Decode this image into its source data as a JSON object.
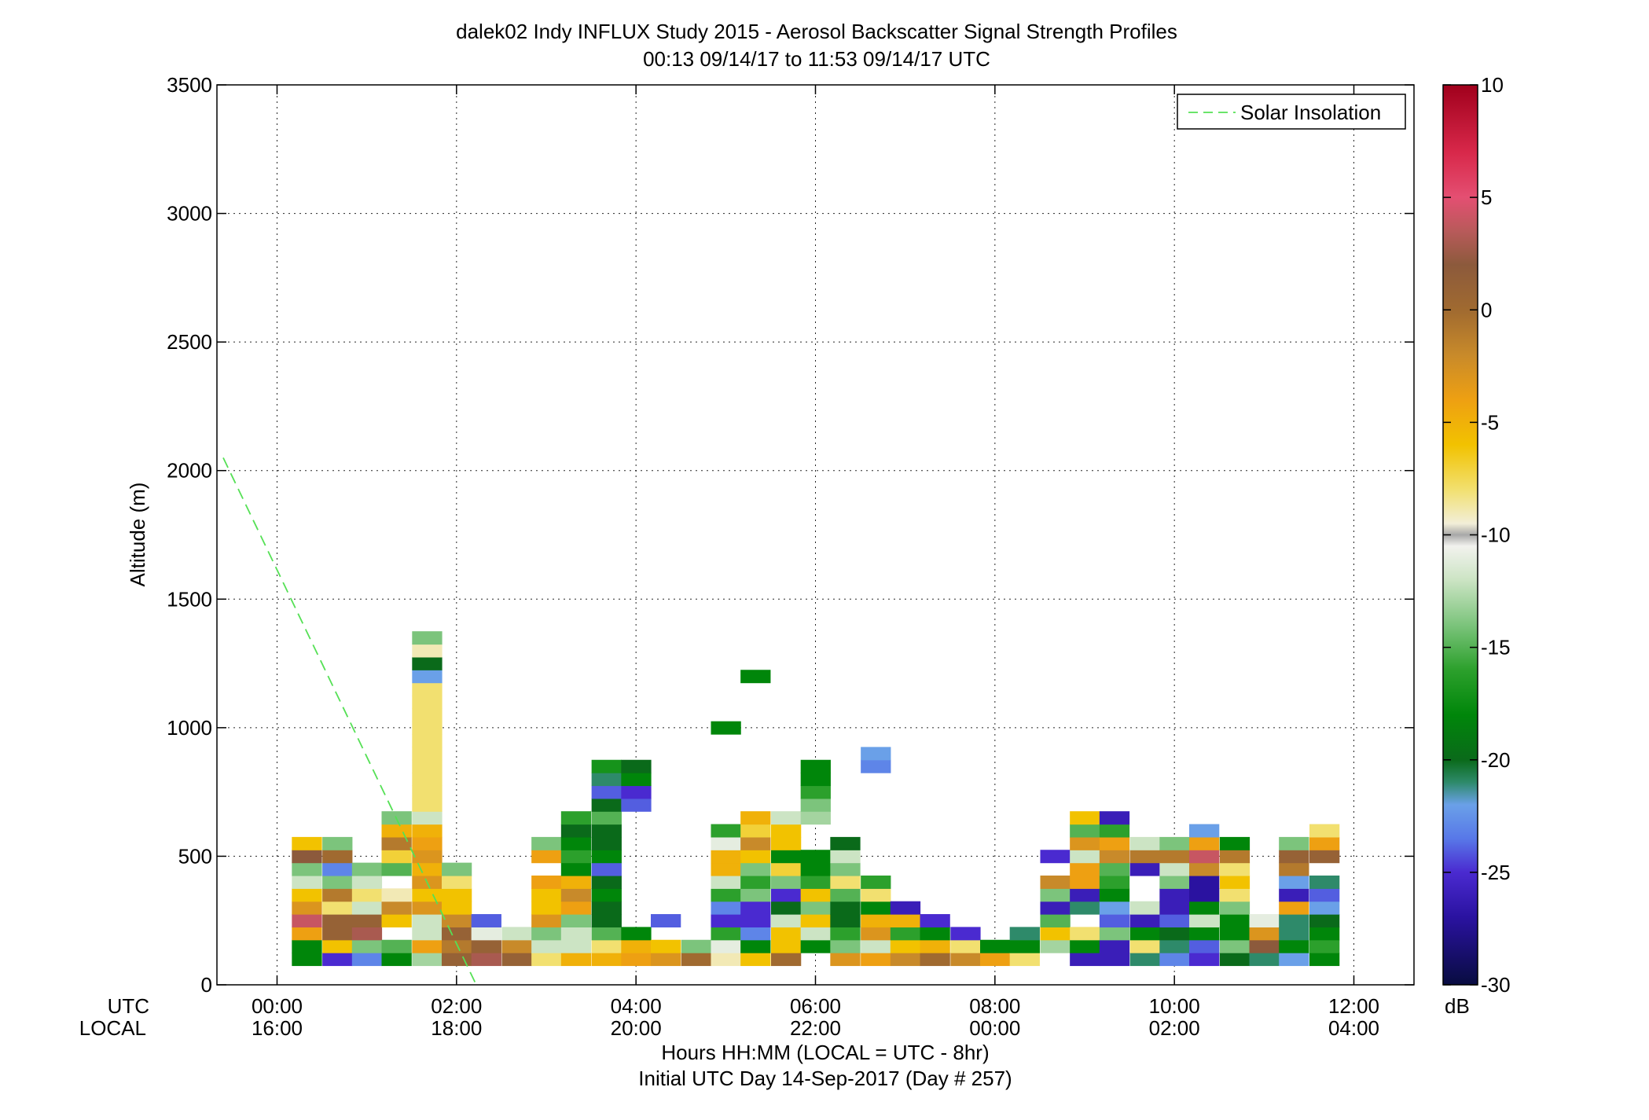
{
  "chart_data": {
    "type": "heatmap",
    "title": "dalek02 Indy INFLUX Study 2015 - Aerosol Backscatter Signal Strength Profiles",
    "subtitle": "00:13 09/14/17 to 11:53 09/14/17  UTC",
    "ylabel": "Altitude (m)",
    "xlabel_lines": [
      "Hours HH:MM  (LOCAL = UTC - 8hr)",
      "Initial UTC Day 14-Sep-2017 (Day # 257)"
    ],
    "x_row_labels": [
      "UTC",
      "LOCAL"
    ],
    "xlim_hours": [
      -0.67,
      12.67
    ],
    "ylim": [
      0,
      3500
    ],
    "x_ticks": [
      {
        "hour": 0,
        "utc": "00:00",
        "local": "16:00"
      },
      {
        "hour": 2,
        "utc": "02:00",
        "local": "18:00"
      },
      {
        "hour": 4,
        "utc": "04:00",
        "local": "20:00"
      },
      {
        "hour": 6,
        "utc": "06:00",
        "local": "22:00"
      },
      {
        "hour": 8,
        "utc": "08:00",
        "local": "00:00"
      },
      {
        "hour": 10,
        "utc": "10:00",
        "local": "02:00"
      },
      {
        "hour": 12,
        "utc": "12:00",
        "local": "04:00"
      }
    ],
    "y_ticks": [
      0,
      500,
      1000,
      1500,
      2000,
      2500,
      3000,
      3500
    ],
    "grid": true,
    "legend_position": "top-right",
    "legend": [
      {
        "name": "Solar Insolation",
        "color": "#55e055",
        "style": "dashed"
      }
    ],
    "solar_insolation": {
      "x_hours": [
        -0.6,
        2.22
      ],
      "y": [
        2050,
        0
      ]
    },
    "colorbar": {
      "label": "dB",
      "range": [
        -30,
        10
      ],
      "ticks": [
        10,
        5,
        0,
        -5,
        -10,
        -15,
        -20,
        -25,
        -30
      ],
      "stops": [
        {
          "v": 10,
          "c": "#a0001c"
        },
        {
          "v": 7,
          "c": "#d8284a"
        },
        {
          "v": 5,
          "c": "#e44f72"
        },
        {
          "v": 3.5,
          "c": "#b85a5a"
        },
        {
          "v": 2,
          "c": "#8c5a3c"
        },
        {
          "v": 0,
          "c": "#a06a30"
        },
        {
          "v": -2,
          "c": "#c88a2a"
        },
        {
          "v": -4,
          "c": "#eea012"
        },
        {
          "v": -6,
          "c": "#f2c200"
        },
        {
          "v": -8,
          "c": "#f2e070"
        },
        {
          "v": -9.5,
          "c": "#f2eed8"
        },
        {
          "v": -10,
          "c": "#a8a8a8"
        },
        {
          "v": -10.5,
          "c": "#f2f2ee"
        },
        {
          "v": -12,
          "c": "#cce4c4"
        },
        {
          "v": -14,
          "c": "#7cc47c"
        },
        {
          "v": -16,
          "c": "#2ca02c"
        },
        {
          "v": -18,
          "c": "#00860a"
        },
        {
          "v": -20,
          "c": "#0a6a1a"
        },
        {
          "v": -21,
          "c": "#2e8a6a"
        },
        {
          "v": -22,
          "c": "#6aa0e8"
        },
        {
          "v": -23.5,
          "c": "#5878e8"
        },
        {
          "v": -25,
          "c": "#4a2ad0"
        },
        {
          "v": -27,
          "c": "#2a12a0"
        },
        {
          "v": -30,
          "c": "#080c40"
        }
      ]
    },
    "cell_width_hours": 0.33,
    "cell_height_m": 50,
    "columns": [
      {
        "t": 0.33,
        "y0": 100,
        "values": [
          -18,
          -18,
          -4,
          4,
          -3,
          -6,
          -12,
          -14,
          2,
          -6
        ]
      },
      {
        "t": 0.67,
        "y0": 100,
        "values": [
          -25,
          -6,
          1,
          1,
          -8,
          -1,
          -14,
          -23,
          0,
          -14
        ]
      },
      {
        "t": 1.0,
        "y0": 100,
        "values": [
          -23,
          -14,
          3,
          1,
          -12,
          -8,
          -12,
          -14
        ]
      },
      {
        "t": 1.33,
        "y0": 100,
        "values": [
          -18,
          -15,
          -10,
          -6,
          -2,
          -9,
          -10,
          -15,
          -7,
          -1,
          -5,
          -14
        ]
      },
      {
        "t": 1.67,
        "y0": 100,
        "values": [
          -13,
          -4,
          -12,
          -12,
          -3,
          -6,
          -3,
          -5,
          -3,
          -4,
          -5,
          -12,
          -8,
          -8,
          -8,
          -8,
          -8,
          -8,
          -8,
          -8,
          -8,
          -8,
          -22,
          -20,
          -9,
          -14
        ]
      },
      {
        "t": 2.0,
        "y0": 100,
        "values": [
          1,
          -1,
          1,
          -2,
          -6,
          -6,
          -8,
          -14
        ]
      },
      {
        "t": 2.33,
        "y0": 100,
        "values": [
          3,
          1,
          -11,
          -24
        ]
      },
      {
        "t": 2.67,
        "y0": 100,
        "values": [
          1,
          -2,
          -12
        ]
      },
      {
        "t": 3.0,
        "y0": 100,
        "values": [
          -8,
          -12,
          -14,
          -3,
          -6,
          -6,
          -4,
          -10,
          -4,
          -14
        ]
      },
      {
        "t": 3.33,
        "y0": 100,
        "values": [
          -5,
          -12,
          -12,
          -14,
          -4,
          -2,
          -5,
          -18,
          -16,
          -18,
          -20,
          -16
        ]
      },
      {
        "t": 3.67,
        "y0": 100,
        "values": [
          -5,
          -8,
          -15,
          -20,
          -20,
          -18,
          -20,
          -24,
          -18,
          -20,
          -20,
          -15,
          -20,
          -24,
          -21,
          -17
        ]
      },
      {
        "t": 4.0,
        "y0": 100,
        "values": [
          -4,
          -5,
          -18,
          -10,
          -10,
          -10,
          -10,
          -10,
          -10,
          -10,
          -10,
          -10,
          -24,
          -25,
          -18,
          -20
        ]
      },
      {
        "t": 4.33,
        "y0": 100,
        "values": [
          -3,
          -6,
          -10,
          -24
        ]
      },
      {
        "t": 4.67,
        "y0": 100,
        "values": [
          0,
          -14
        ]
      },
      {
        "t": 5.0,
        "y0": 100,
        "values": [
          -9,
          -11,
          -16,
          -25,
          -23,
          -16,
          -12,
          -5,
          -5,
          -11,
          -16,
          -10,
          -10,
          -10,
          -10,
          -10,
          -10,
          -10,
          -18
        ]
      },
      {
        "t": 5.33,
        "y0": 100,
        "values": [
          -6,
          -18,
          -23,
          -25,
          -25,
          -14,
          -16,
          -14,
          -6,
          -2,
          -7,
          -5,
          -10,
          -10,
          -10,
          -10,
          -10,
          -10,
          -10,
          -10,
          -10,
          -10,
          -18,
          -10,
          -10,
          -10,
          -10
        ]
      },
      {
        "t": 5.67,
        "y0": 100,
        "values": [
          0,
          -6,
          -6,
          -12,
          -20,
          -25,
          -14,
          -7,
          -18,
          -6,
          -6,
          -12
        ]
      },
      {
        "t": 6.0,
        "y0": 100,
        "values": [
          -10,
          -18,
          -12,
          -6,
          -14,
          -6,
          -16,
          -18,
          -18,
          -10,
          -10,
          -13,
          -14,
          -16,
          -18,
          -18
        ]
      },
      {
        "t": 6.33,
        "y0": 100,
        "values": [
          -3,
          -14,
          -16,
          -20,
          -20,
          -15,
          -8,
          -14,
          -12,
          -20
        ]
      },
      {
        "t": 6.67,
        "y0": 100,
        "values": [
          -4,
          -12,
          -3,
          -5,
          -18,
          -8,
          -16,
          -10,
          -10,
          -10,
          -10,
          -10,
          -10,
          -10,
          -10,
          -23,
          -22
        ]
      },
      {
        "t": 7.0,
        "y0": 100,
        "values": [
          -2,
          -6,
          -16,
          -5,
          -26
        ]
      },
      {
        "t": 7.33,
        "y0": 100,
        "values": [
          0,
          -5,
          -18,
          -25
        ]
      },
      {
        "t": 7.67,
        "y0": 100,
        "values": [
          -2,
          -8,
          -25
        ]
      },
      {
        "t": 8.0,
        "y0": 100,
        "values": [
          -4,
          -18
        ]
      },
      {
        "t": 8.33,
        "y0": 100,
        "values": [
          -8,
          -18,
          -21
        ]
      },
      {
        "t": 8.67,
        "y0": 100,
        "values": [
          -10,
          -13,
          -6,
          -15,
          -26,
          -14,
          -2,
          -10,
          -25
        ]
      },
      {
        "t": 9.0,
        "y0": 100,
        "values": [
          -26,
          -18,
          -8,
          -10,
          -21,
          -26,
          -4,
          -4,
          -12,
          -3,
          -15,
          -6,
          -10,
          -10,
          -10,
          -10,
          -10,
          -10,
          -10,
          -10,
          -10,
          -10,
          -10,
          -10,
          -10,
          -10
        ]
      },
      {
        "t": 9.33,
        "y0": 100,
        "values": [
          -26,
          -26,
          -14,
          -24,
          -22,
          -18,
          -16,
          -15,
          -2,
          -4,
          -16,
          -26
        ]
      },
      {
        "t": 9.67,
        "y0": 100,
        "values": [
          -21,
          -8,
          -18,
          -26,
          -12,
          -10,
          -10,
          -26,
          -1,
          -12,
          -10,
          -10,
          -10,
          -10,
          -10
        ]
      },
      {
        "t": 10.0,
        "y0": 100,
        "values": [
          -23,
          -21,
          -20,
          -24,
          -26,
          -26,
          -14,
          -12,
          -1,
          -14
        ]
      },
      {
        "t": 10.33,
        "y0": 100,
        "values": [
          -25,
          -24,
          -18,
          -12,
          -18,
          -27,
          -27,
          -2,
          4,
          -4,
          -22
        ]
      },
      {
        "t": 10.67,
        "y0": 100,
        "values": [
          -20,
          -14,
          -18,
          -18,
          -14,
          -8,
          -6,
          -8,
          -1,
          -18
        ]
      },
      {
        "t": 11.0,
        "y0": 100,
        "values": [
          -21,
          2,
          -3,
          -11
        ]
      },
      {
        "t": 11.33,
        "y0": 100,
        "values": [
          -22,
          -18,
          -21,
          -21,
          -4,
          -26,
          -22,
          -1,
          1,
          -14
        ]
      },
      {
        "t": 11.67,
        "y0": 100,
        "values": [
          -18,
          -16,
          -18,
          -20,
          -22,
          -24,
          -21,
          -10,
          1,
          -4,
          -8
        ]
      }
    ]
  }
}
